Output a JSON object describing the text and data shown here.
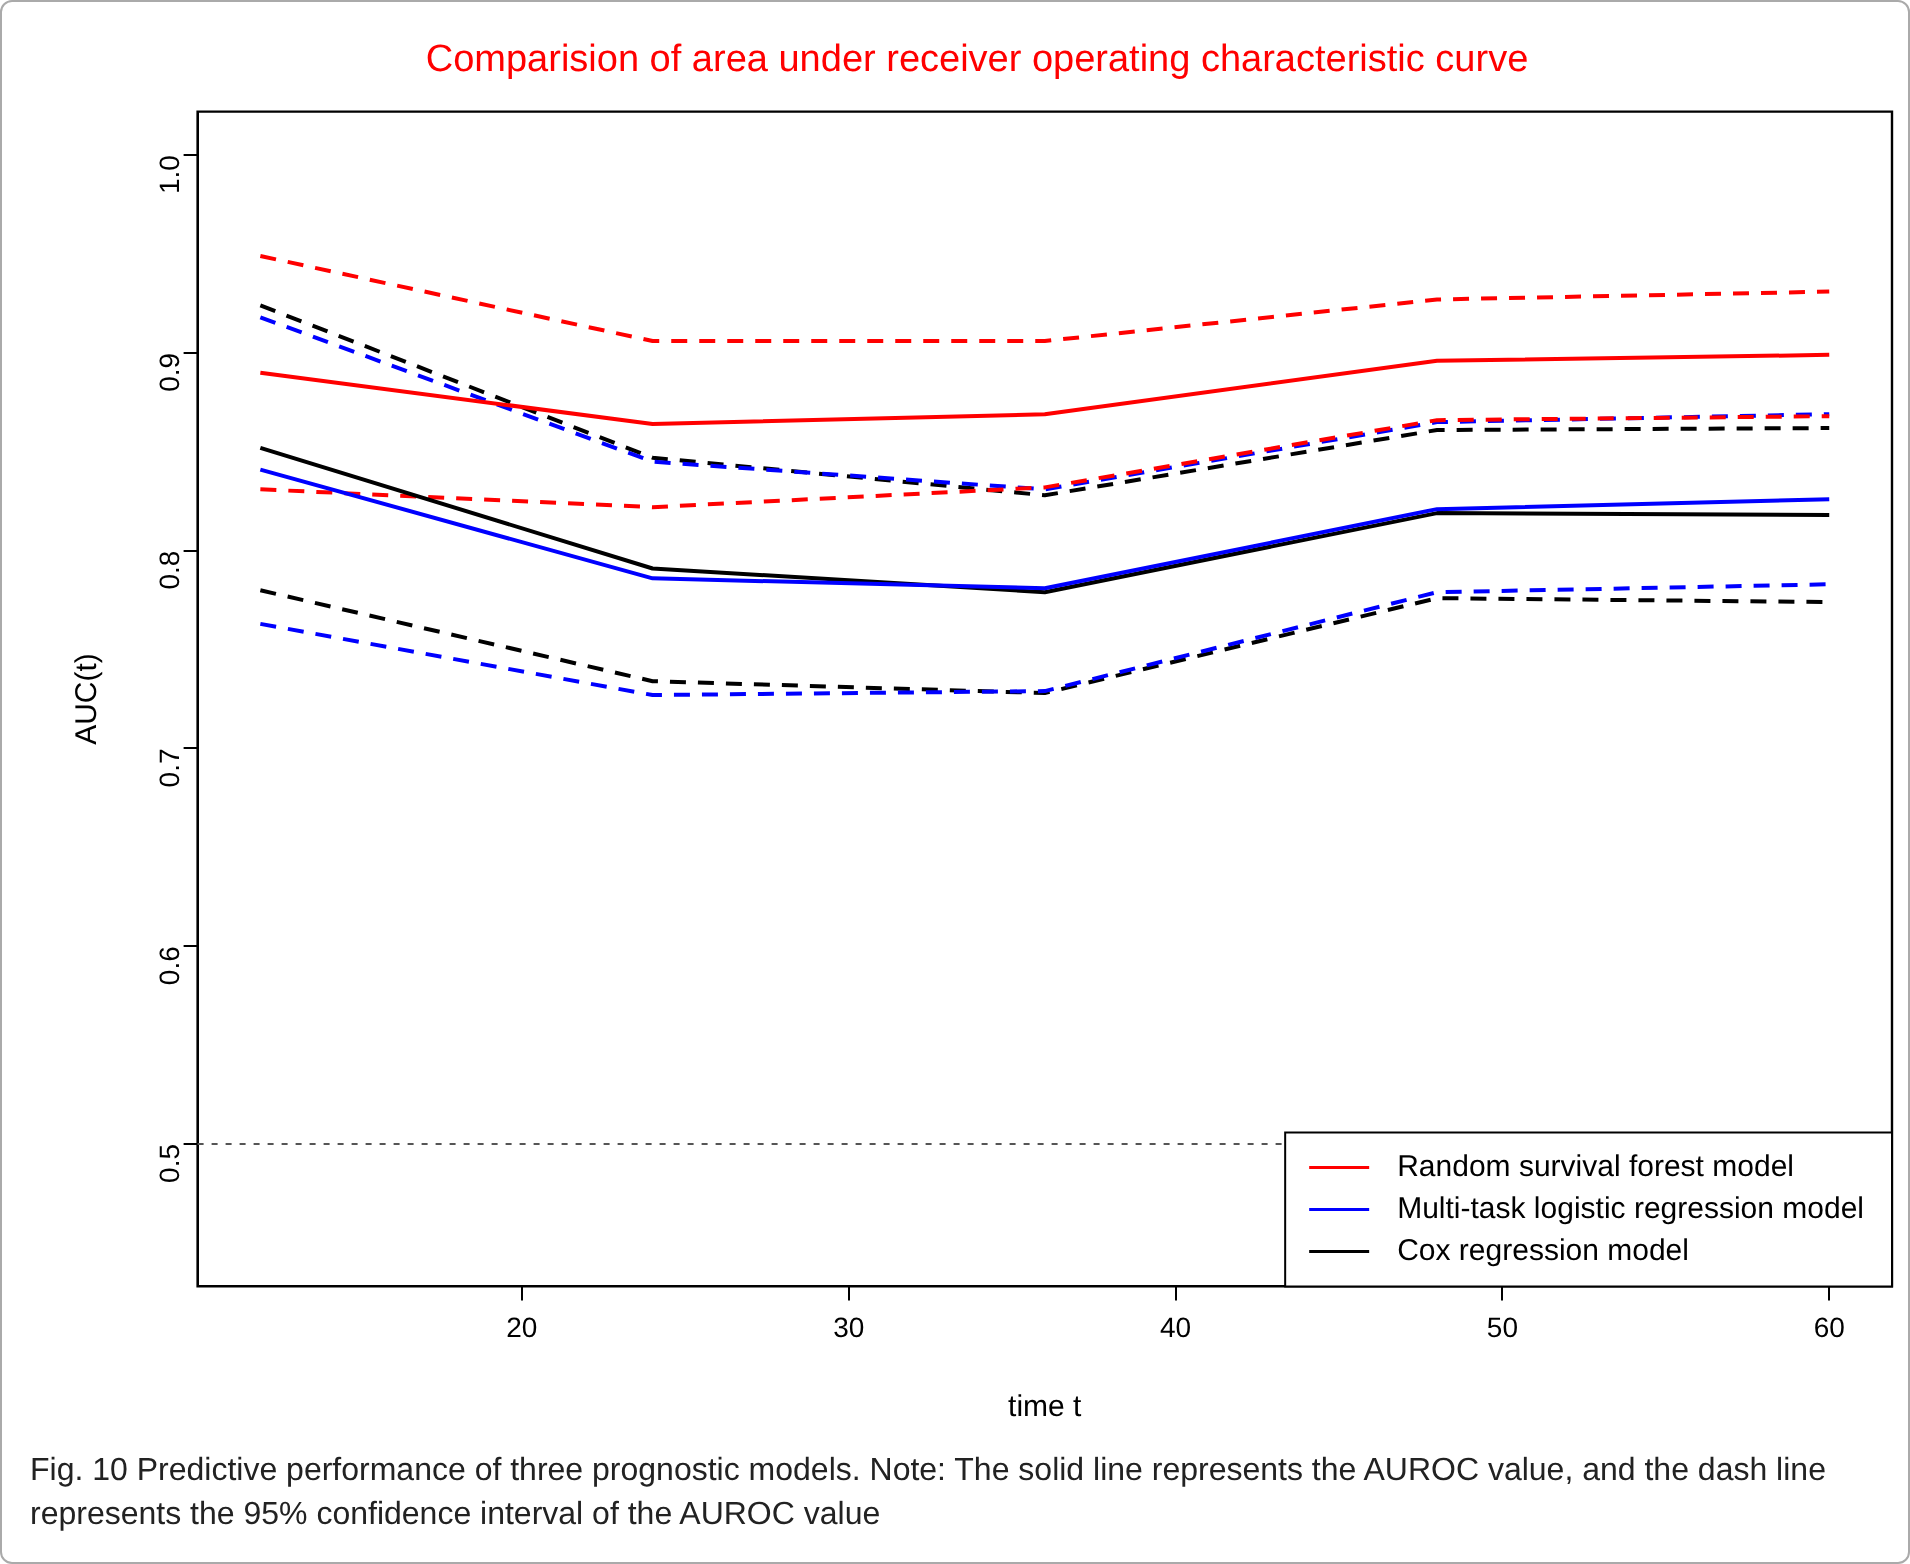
{
  "chart_data": {
    "type": "line",
    "title": "Comparision of area under receiver operating characteristic curve",
    "xlabel": "time t",
    "ylabel": "AUC(t)",
    "x": [
      12,
      24,
      36,
      48,
      60
    ],
    "xlim": [
      10.08,
      61.92
    ],
    "xticks": [
      20,
      30,
      40,
      50,
      60
    ],
    "ylim": [
      0.428,
      1.022
    ],
    "yticks": [
      0.5,
      0.6,
      0.7,
      0.8,
      0.9,
      {
        "value": 1,
        "label": "1.0"
      }
    ],
    "grid": false,
    "legend": "bottom right",
    "marker": "none",
    "series": [
      {
        "name": "Random survival forest model",
        "color": "#ff0000",
        "values": [
          0.89,
          0.864,
          0.869,
          0.896,
          0.899
        ],
        "line_style": "solid"
      },
      {
        "name": "Multi-task logistic regression model",
        "color": "#0000ff",
        "values": [
          0.841,
          0.786,
          0.781,
          0.821,
          0.826
        ],
        "line_style": "solid"
      },
      {
        "name": "Cox regression model",
        "color": "#000000",
        "values": [
          0.852,
          0.791,
          0.779,
          0.819,
          0.818
        ],
        "line_style": "solid"
      },
      {
        "color": "#ff0000",
        "values": [
          0.949,
          0.906,
          0.906,
          0.927,
          0.931
        ],
        "line_style": "dashed"
      },
      {
        "color": "#ff0000",
        "values": [
          0.831,
          0.822,
          0.832,
          0.866,
          0.868
        ],
        "line_style": "dashed"
      },
      {
        "color": "#0000ff",
        "values": [
          0.918,
          0.845,
          0.831,
          0.865,
          0.869
        ],
        "line_style": "dashed"
      },
      {
        "color": "#0000ff",
        "values": [
          0.763,
          0.727,
          0.729,
          0.779,
          0.783
        ],
        "line_style": "dashed"
      },
      {
        "color": "#000000",
        "values": [
          0.924,
          0.847,
          0.828,
          0.861,
          0.862
        ],
        "line_style": "dashed"
      },
      {
        "color": "#000000",
        "values": [
          0.78,
          0.734,
          0.728,
          0.776,
          0.774
        ],
        "line_style": "dashed"
      }
    ],
    "ref_lines": [
      {
        "axis": "y",
        "value": 0.5,
        "color": "#555555",
        "line_style": "dotted"
      }
    ],
    "annotations": [
      "Fig. 10  Predictive performance of three prognostic models. Note: The solid line represents the AUROC value, and the dash line represents the 95% confidence interval of the AUROC value"
    ]
  }
}
